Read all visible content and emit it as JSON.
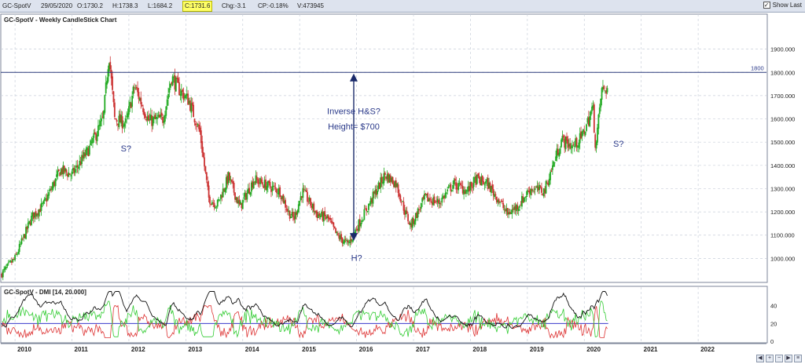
{
  "toolbar": {
    "symbol": "GC-SpotV",
    "date": "29/05/2020",
    "open": "O:1730.2",
    "high": "H:1738.3",
    "low": "L:1684.2",
    "close": "C:1731.6",
    "chg": "Chg:-3.1",
    "cp": "CP:-0.18%",
    "volume": "V:473945",
    "show_last": "Show Last"
  },
  "colors": {
    "up": "#22aa22",
    "down": "#cc3333",
    "line1800": "#2a3a7a",
    "annot": "#2b3a8a"
  },
  "chart_data": [
    {
      "type": "candlestick",
      "title": "GC-SpotV - Weekly CandleStick Chart",
      "ylim": [
        900,
        2000
      ],
      "yticks": [
        "1000.000",
        "1100.000",
        "1200.000",
        "1300.000",
        "1400.000",
        "1500.000",
        "1600.000",
        "1700.000",
        "1800.000",
        "1900.000"
      ],
      "xticks": [
        "2010",
        "2011",
        "2012",
        "2013",
        "2014",
        "2015",
        "2016",
        "2017",
        "2018",
        "2019",
        "2020",
        "2021",
        "2022"
      ],
      "xlim": [
        2009.75,
        2023.2
      ],
      "resistance": {
        "value": 1800,
        "label": "1800"
      },
      "anchors": [
        [
          2009.75,
          930
        ],
        [
          2010.0,
          1000
        ],
        [
          2010.3,
          1180
        ],
        [
          2010.5,
          1230
        ],
        [
          2010.8,
          1380
        ],
        [
          2011.0,
          1360
        ],
        [
          2011.3,
          1470
        ],
        [
          2011.55,
          1600
        ],
        [
          2011.65,
          1880
        ],
        [
          2011.75,
          1600
        ],
        [
          2011.95,
          1580
        ],
        [
          2012.1,
          1740
        ],
        [
          2012.35,
          1590
        ],
        [
          2012.6,
          1600
        ],
        [
          2012.75,
          1780
        ],
        [
          2012.9,
          1720
        ],
        [
          2013.05,
          1680
        ],
        [
          2013.25,
          1540
        ],
        [
          2013.4,
          1260
        ],
        [
          2013.55,
          1230
        ],
        [
          2013.75,
          1350
        ],
        [
          2013.95,
          1220
        ],
        [
          2014.2,
          1340
        ],
        [
          2014.45,
          1310
        ],
        [
          2014.65,
          1290
        ],
        [
          2014.8,
          1200
        ],
        [
          2014.9,
          1170
        ],
        [
          2015.05,
          1290
        ],
        [
          2015.3,
          1190
        ],
        [
          2015.5,
          1170
        ],
        [
          2015.65,
          1100
        ],
        [
          2015.85,
          1060
        ],
        [
          2016.0,
          1130
        ],
        [
          2016.3,
          1270
        ],
        [
          2016.5,
          1360
        ],
        [
          2016.7,
          1320
        ],
        [
          2016.85,
          1200
        ],
        [
          2016.95,
          1140
        ],
        [
          2017.2,
          1260
        ],
        [
          2017.45,
          1240
        ],
        [
          2017.7,
          1320
        ],
        [
          2017.95,
          1290
        ],
        [
          2018.1,
          1340
        ],
        [
          2018.3,
          1320
        ],
        [
          2018.5,
          1250
        ],
        [
          2018.65,
          1190
        ],
        [
          2018.85,
          1230
        ],
        [
          2019.05,
          1300
        ],
        [
          2019.3,
          1290
        ],
        [
          2019.45,
          1400
        ],
        [
          2019.6,
          1510
        ],
        [
          2019.8,
          1480
        ],
        [
          2019.95,
          1520
        ],
        [
          2020.05,
          1580
        ],
        [
          2020.15,
          1650
        ],
        [
          2020.2,
          1470
        ],
        [
          2020.3,
          1720
        ],
        [
          2020.42,
          1731.6
        ]
      ],
      "annotations": [
        {
          "text": "Inverse H&S?",
          "x": 2015.95,
          "y": 1620
        },
        {
          "text": "Height= $700",
          "x": 2015.95,
          "y": 1555
        },
        {
          "text": "S?",
          "x": 2011.95,
          "y": 1460
        },
        {
          "text": "H?",
          "x": 2016.0,
          "y": 990
        },
        {
          "text": "S?",
          "x": 2020.6,
          "y": 1480
        }
      ],
      "arrow": {
        "x": 2015.95,
        "y_top": 1795,
        "y_bottom": 1075
      }
    },
    {
      "type": "line",
      "title": "GC-SpotV - DMI [14, 20.000]",
      "ylim": [
        0,
        60
      ],
      "yticks": [
        "0",
        "20",
        "40"
      ],
      "threshold": 20
    }
  ]
}
